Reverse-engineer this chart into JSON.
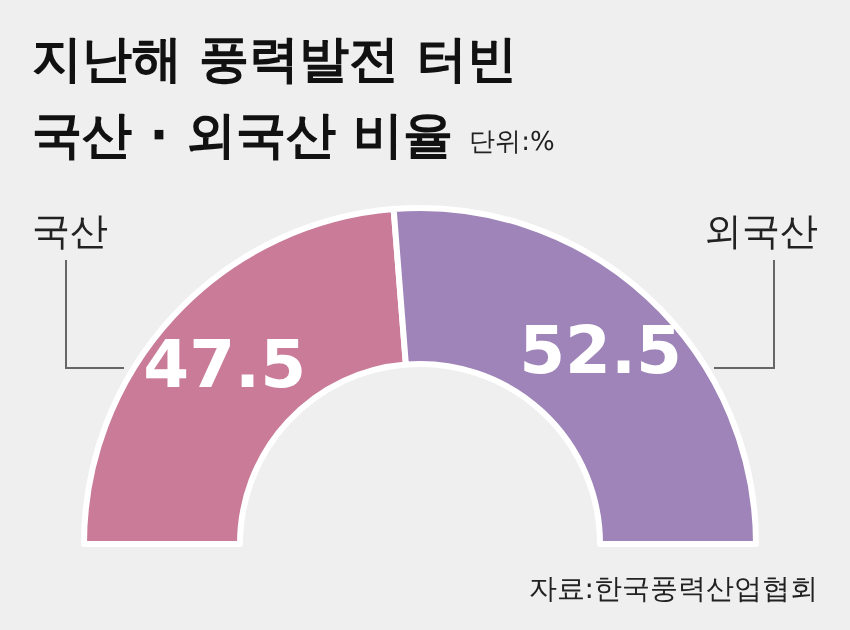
{
  "chart_data": {
    "type": "donut",
    "title": "지난해 풍력발전 터빈 국산 · 외국산 비율",
    "subtitle": "단위:%",
    "categories": [
      "국산",
      "외국산"
    ],
    "values": [
      47.5,
      52.5
    ],
    "colors": [
      "#c97b98",
      "#9e84b8"
    ],
    "data_labels": true,
    "annotations": [
      "자료:한국풍력산업협회"
    ]
  }
}
